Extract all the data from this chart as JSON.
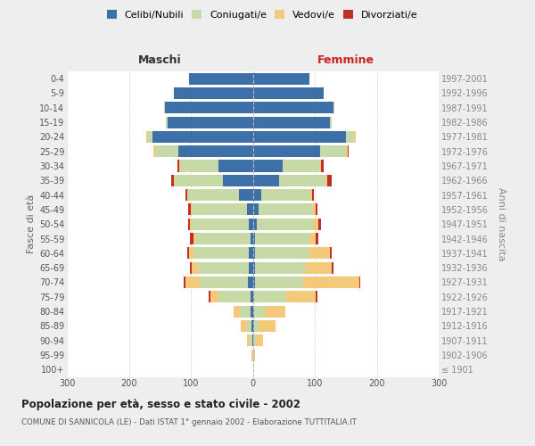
{
  "age_groups": [
    "100+",
    "95-99",
    "90-94",
    "85-89",
    "80-84",
    "75-79",
    "70-74",
    "65-69",
    "60-64",
    "55-59",
    "50-54",
    "45-49",
    "40-44",
    "35-39",
    "30-34",
    "25-29",
    "20-24",
    "15-19",
    "10-14",
    "5-9",
    "0-4"
  ],
  "birth_years": [
    "≤ 1901",
    "1902-1906",
    "1907-1911",
    "1912-1916",
    "1917-1921",
    "1922-1926",
    "1927-1931",
    "1932-1936",
    "1937-1941",
    "1942-1946",
    "1947-1951",
    "1952-1956",
    "1957-1961",
    "1962-1966",
    "1967-1971",
    "1972-1976",
    "1977-1981",
    "1982-1986",
    "1987-1991",
    "1992-1996",
    "1997-2001"
  ],
  "maschi_celibi": [
    0,
    0,
    1,
    2,
    3,
    4,
    8,
    7,
    7,
    4,
    7,
    9,
    22,
    48,
    55,
    120,
    162,
    138,
    142,
    128,
    103
  ],
  "maschi_coniugati": [
    0,
    1,
    4,
    8,
    18,
    52,
    78,
    82,
    88,
    88,
    92,
    88,
    82,
    78,
    62,
    38,
    8,
    2,
    1,
    0,
    0
  ],
  "maschi_vedovi": [
    0,
    1,
    5,
    10,
    10,
    13,
    22,
    10,
    8,
    3,
    3,
    3,
    2,
    2,
    1,
    2,
    2,
    0,
    0,
    0,
    0
  ],
  "maschi_divorziati": [
    0,
    0,
    0,
    0,
    0,
    2,
    4,
    2,
    3,
    7,
    3,
    4,
    3,
    3,
    4,
    1,
    0,
    0,
    0,
    0,
    0
  ],
  "femmine_nubili": [
    0,
    0,
    1,
    2,
    2,
    2,
    4,
    4,
    4,
    4,
    7,
    9,
    13,
    42,
    48,
    108,
    150,
    125,
    130,
    115,
    92
  ],
  "femmine_coniugate": [
    0,
    1,
    4,
    7,
    18,
    52,
    78,
    82,
    88,
    88,
    92,
    88,
    80,
    75,
    60,
    43,
    13,
    2,
    1,
    0,
    0
  ],
  "femmine_vedove": [
    0,
    2,
    12,
    28,
    32,
    48,
    90,
    42,
    32,
    10,
    7,
    4,
    3,
    3,
    2,
    2,
    3,
    0,
    0,
    0,
    0
  ],
  "femmine_divorziate": [
    0,
    0,
    0,
    0,
    0,
    2,
    2,
    2,
    4,
    4,
    4,
    3,
    3,
    7,
    4,
    1,
    0,
    0,
    0,
    0,
    0
  ],
  "color_celibi": "#3D6FA8",
  "color_coniugati": "#C8D9A8",
  "color_vedovi": "#F5C97A",
  "color_divorziati": "#C0302A",
  "title": "Popolazione per età, sesso e stato civile - 2002",
  "subtitle": "COMUNE DI SANNICOLA (LE) - Dati ISTAT 1° gennaio 2002 - Elaborazione TUTTITALIA.IT",
  "label_maschi": "Maschi",
  "label_femmine": "Femmine",
  "label_fasce": "Fasce di età",
  "label_anni": "Anni di nascita",
  "legend_labels": [
    "Celibi/Nubili",
    "Coniugati/e",
    "Vedovi/e",
    "Divorziati/e"
  ],
  "xlim": 300,
  "bg_color": "#eeeeee"
}
